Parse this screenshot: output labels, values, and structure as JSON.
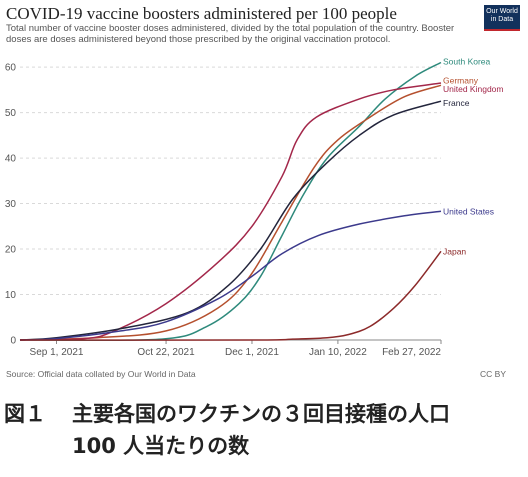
{
  "header": {
    "title": "COVID-19 vaccine boosters administered per 100 people",
    "subtitle": "Total number of vaccine booster doses administered, divided by the total population of the country. Booster doses are doses administered beyond those prescribed by the original vaccination protocol.",
    "logo_line1": "Our World",
    "logo_line2": "in Data"
  },
  "footer": {
    "source": "Source: Official data collated by Our World in Data",
    "license": "CC BY"
  },
  "caption": {
    "figure_number": "図１",
    "line1": "主要各国のワクチンの３回目接種の人口",
    "line2": "100 人当たりの数"
  },
  "colors": {
    "south_korea": "#2e8a7c",
    "germany": "#b5502e",
    "united_kingdom": "#a3274a",
    "france": "#23253c",
    "united_states": "#3c3a8c",
    "japan": "#8c2a2a",
    "grid": "#d9d9d9",
    "axis_text": "#555555"
  },
  "chart_data": {
    "type": "line",
    "title": "COVID-19 vaccine boosters administered per 100 people",
    "xlabel": "",
    "ylabel": "",
    "x_ticks": [
      "Sep 1, 2021",
      "Oct 22, 2021",
      "Dec 1, 2021",
      "Jan 10, 2022",
      "Feb 27, 2022"
    ],
    "y_ticks": [
      0,
      10,
      20,
      30,
      40,
      50,
      60
    ],
    "xlim": [
      "2021-08-15",
      "2022-02-27"
    ],
    "ylim": [
      0,
      62
    ],
    "grid": "horizontal",
    "legend": "right end labels",
    "series": [
      {
        "name": "South Korea",
        "color_key": "south_korea",
        "points": [
          [
            "2021-08-15",
            0
          ],
          [
            "2021-10-20",
            0.2
          ],
          [
            "2021-11-10",
            3
          ],
          [
            "2021-11-25",
            8
          ],
          [
            "2021-12-05",
            14
          ],
          [
            "2021-12-15",
            23
          ],
          [
            "2021-12-25",
            32
          ],
          [
            "2022-01-05",
            40
          ],
          [
            "2022-01-20",
            47
          ],
          [
            "2022-02-01",
            53
          ],
          [
            "2022-02-15",
            58
          ],
          [
            "2022-02-27",
            61
          ]
        ]
      },
      {
        "name": "Germany",
        "color_key": "germany",
        "points": [
          [
            "2021-08-15",
            0
          ],
          [
            "2021-09-20",
            0.5
          ],
          [
            "2021-10-22",
            2
          ],
          [
            "2021-11-15",
            7
          ],
          [
            "2021-11-30",
            14
          ],
          [
            "2021-12-15",
            26
          ],
          [
            "2021-12-30",
            38
          ],
          [
            "2022-01-10",
            44
          ],
          [
            "2022-01-25",
            49
          ],
          [
            "2022-02-10",
            53.5
          ],
          [
            "2022-02-27",
            56
          ]
        ]
      },
      {
        "name": "United Kingdom",
        "color_key": "united_kingdom",
        "points": [
          [
            "2021-08-15",
            0
          ],
          [
            "2021-09-14",
            0.3
          ],
          [
            "2021-09-28",
            2
          ],
          [
            "2021-10-22",
            8
          ],
          [
            "2021-11-15",
            17
          ],
          [
            "2021-12-01",
            25
          ],
          [
            "2021-12-15",
            36
          ],
          [
            "2021-12-22",
            44
          ],
          [
            "2021-12-31",
            49
          ],
          [
            "2022-01-20",
            53
          ],
          [
            "2022-02-05",
            55
          ],
          [
            "2022-02-27",
            56.5
          ]
        ]
      },
      {
        "name": "France",
        "color_key": "france",
        "points": [
          [
            "2021-08-15",
            0
          ],
          [
            "2021-09-01",
            0.5
          ],
          [
            "2021-10-01",
            2.5
          ],
          [
            "2021-11-01",
            6
          ],
          [
            "2021-11-20",
            12
          ],
          [
            "2021-12-05",
            20
          ],
          [
            "2021-12-20",
            31
          ],
          [
            "2022-01-05",
            39
          ],
          [
            "2022-01-20",
            45
          ],
          [
            "2022-02-05",
            49.5
          ],
          [
            "2022-02-27",
            52.5
          ]
        ]
      },
      {
        "name": "United States",
        "color_key": "united_states",
        "points": [
          [
            "2021-08-15",
            0
          ],
          [
            "2021-09-01",
            0.3
          ],
          [
            "2021-10-01",
            2
          ],
          [
            "2021-10-22",
            4
          ],
          [
            "2021-11-15",
            9
          ],
          [
            "2021-12-01",
            14
          ],
          [
            "2021-12-15",
            19
          ],
          [
            "2022-01-01",
            23
          ],
          [
            "2022-01-20",
            25.5
          ],
          [
            "2022-02-10",
            27.3
          ],
          [
            "2022-02-27",
            28.3
          ]
        ]
      },
      {
        "name": "Japan",
        "color_key": "japan",
        "points": [
          [
            "2021-08-15",
            0
          ],
          [
            "2021-12-01",
            0
          ],
          [
            "2021-12-20",
            0.2
          ],
          [
            "2022-01-05",
            0.5
          ],
          [
            "2022-01-15",
            1.2
          ],
          [
            "2022-01-25",
            3
          ],
          [
            "2022-02-05",
            7
          ],
          [
            "2022-02-15",
            12
          ],
          [
            "2022-02-27",
            19.5
          ]
        ]
      }
    ]
  }
}
